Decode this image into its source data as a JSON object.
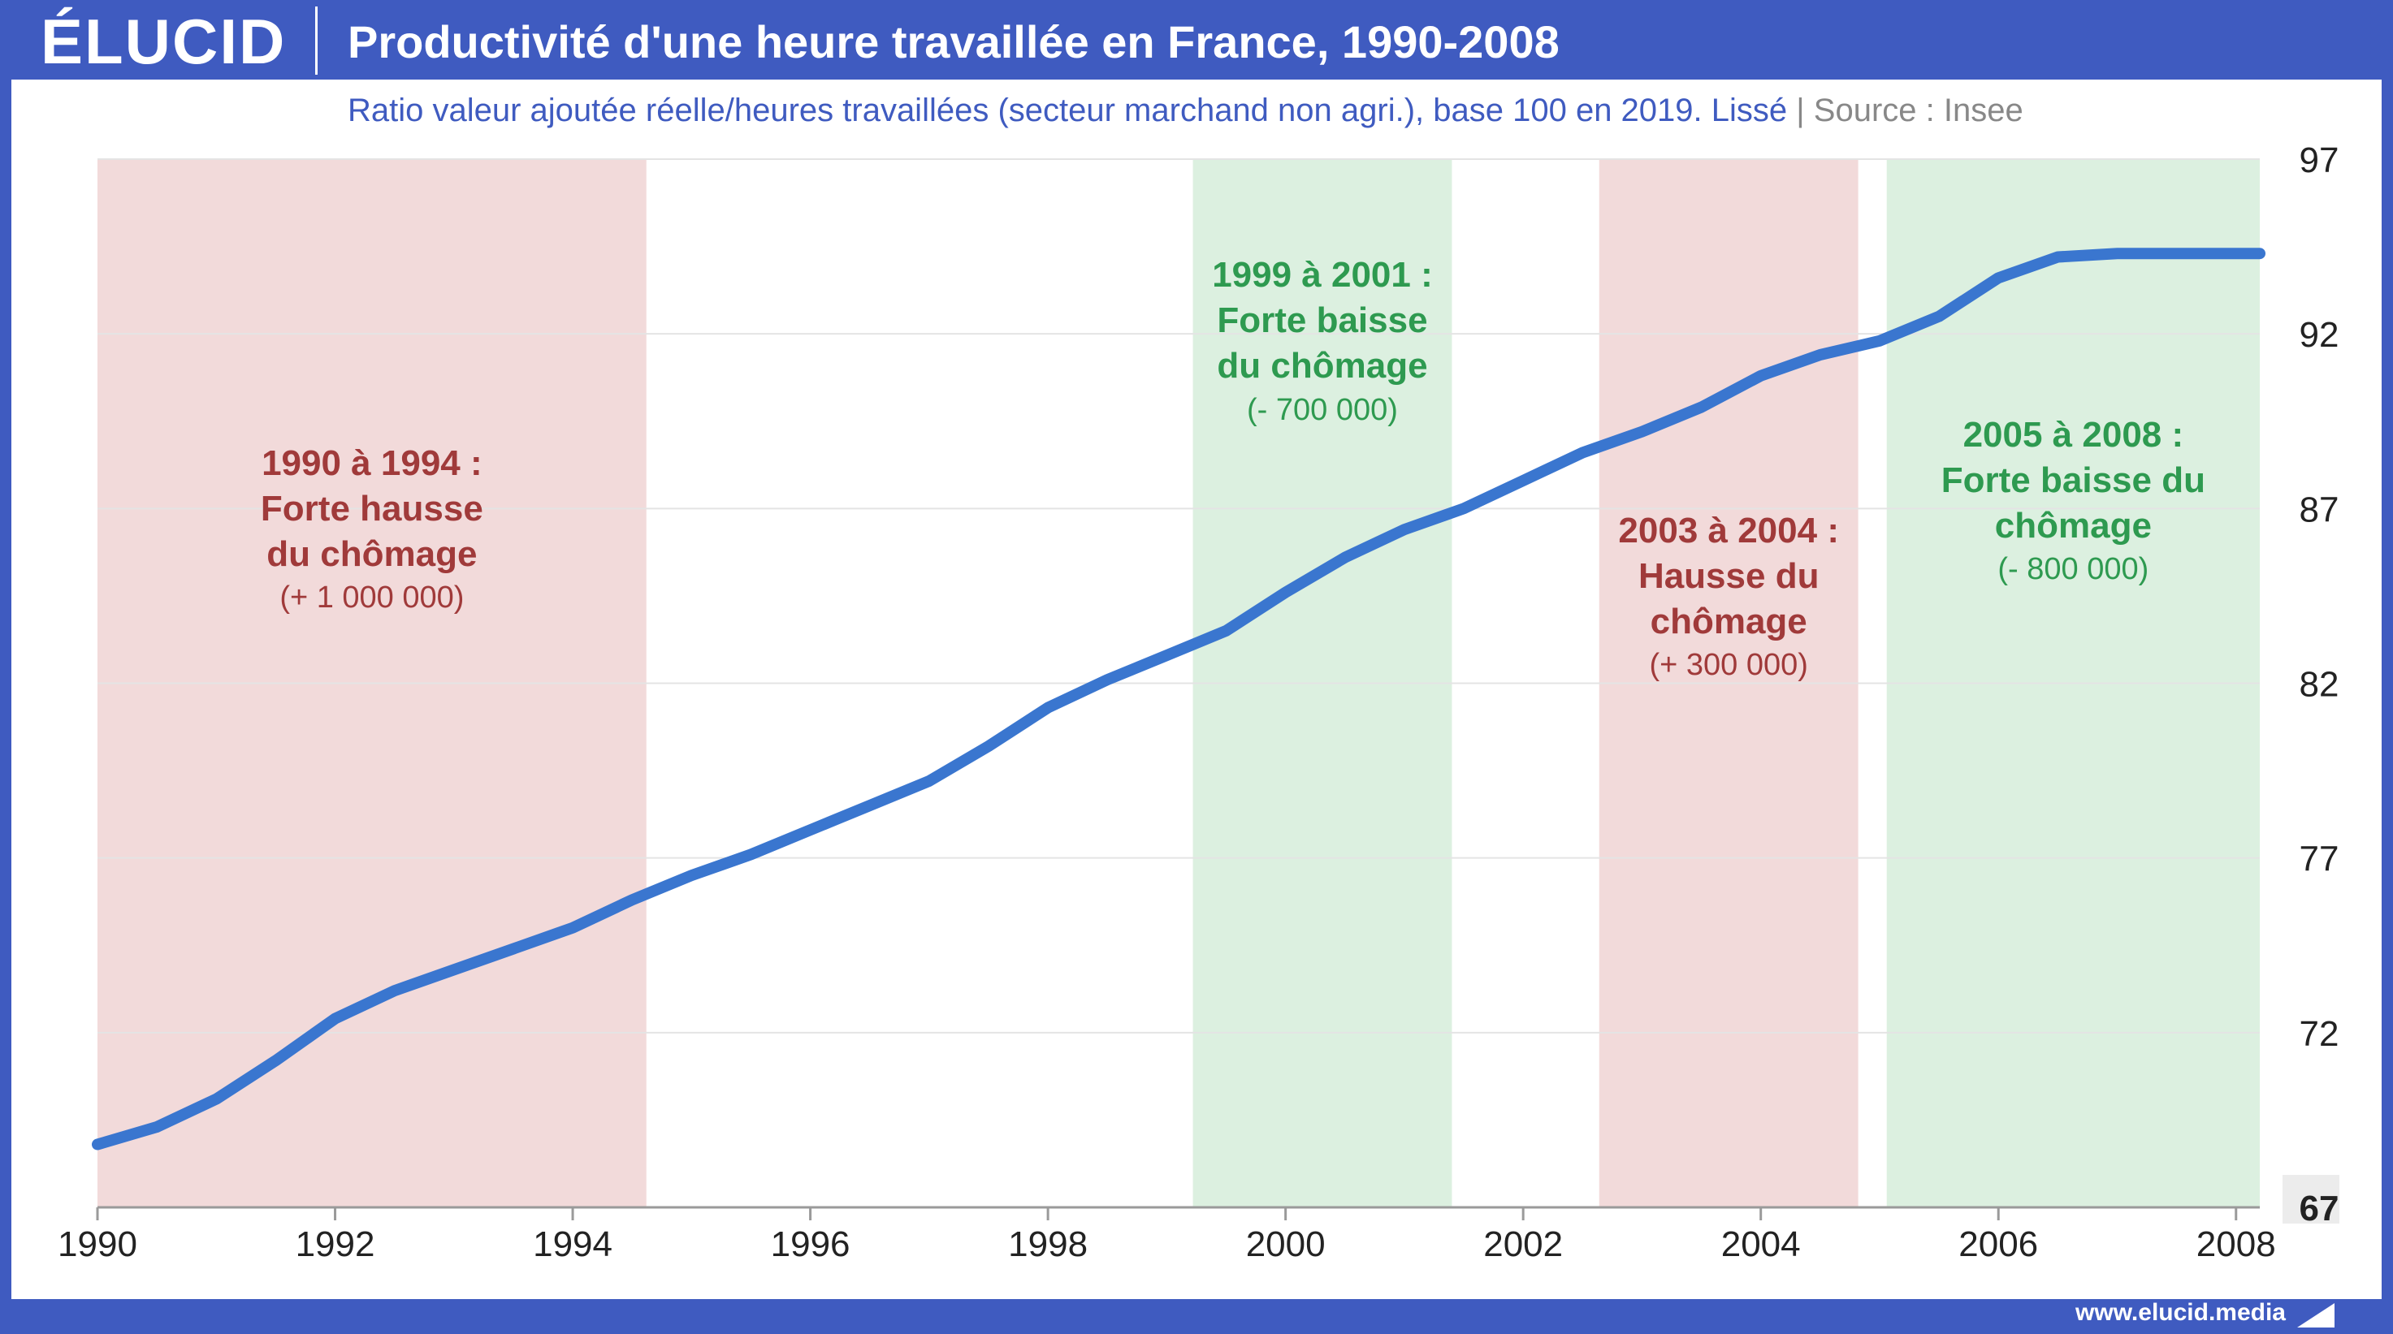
{
  "brand": {
    "logo": "ÉLUCID",
    "url": "www.elucid.media"
  },
  "header": {
    "title": "Productivité d'une heure travaillée en France, 1990-2008"
  },
  "subtitle": {
    "text": "Ratio valeur ajoutée réelle/heures travaillées (secteur marchand non agri.), base 100 en 2019. Lissé",
    "separator": "|",
    "source": "Source : Insee"
  },
  "colors": {
    "frame": "#3f5bc0",
    "line": "#3a76cf",
    "rise_band": "#f2dada",
    "fall_band": "#dcf0e0",
    "rise_text": "#a03a3a",
    "fall_text": "#2e9a50"
  },
  "chart_data": {
    "type": "line",
    "xlim": [
      1990,
      2008.2
    ],
    "ylim": [
      67,
      97
    ],
    "x_ticks": [
      "1990",
      "1992",
      "1994",
      "1996",
      "1998",
      "2000",
      "2002",
      "2004",
      "2006",
      "2008"
    ],
    "y_ticks": [
      "97",
      "92",
      "87",
      "82",
      "77",
      "72",
      "67"
    ],
    "grid": true,
    "y_axis_side": "right",
    "series": [
      {
        "x": [
          1990,
          1990.5,
          1991,
          1991.5,
          1992,
          1992.5,
          1993,
          1993.5,
          1994,
          1994.5,
          1995,
          1995.5,
          1996,
          1996.5,
          1997,
          1997.5,
          1998,
          1998.5,
          1999,
          1999.5,
          2000,
          2000.5,
          2001,
          2001.5,
          2002,
          2002.5,
          2003,
          2003.5,
          2004,
          2004.5,
          2005,
          2005.5,
          2006,
          2006.5,
          2007,
          2007.5,
          2008,
          2008.2
        ],
        "y": [
          68.8,
          69.3,
          70.1,
          71.2,
          72.4,
          73.2,
          73.8,
          74.4,
          75.0,
          75.8,
          76.5,
          77.1,
          77.8,
          78.5,
          79.2,
          80.2,
          81.3,
          82.1,
          82.8,
          83.5,
          84.6,
          85.6,
          86.4,
          87.0,
          87.8,
          88.6,
          89.2,
          89.9,
          90.8,
          91.4,
          91.8,
          92.5,
          93.6,
          94.2,
          94.3,
          94.3,
          94.3,
          94.3
        ]
      }
    ],
    "bands": [
      {
        "kind": "rise",
        "from": 1990,
        "to": 1994.62,
        "label_year": "1990 à 1994 :",
        "label_l1": "Forte hausse",
        "label_l2": "du chômage",
        "label_delta": "(+ 1 000 000)"
      },
      {
        "kind": "fall",
        "from": 1999.22,
        "to": 2001.4,
        "label_year": "1999 à 2001 :",
        "label_l1": "Forte baisse",
        "label_l2": "du chômage",
        "label_delta": "(- 700 000)"
      },
      {
        "kind": "rise",
        "from": 2002.64,
        "to": 2004.82,
        "label_year": "2003 à 2004 :",
        "label_l1": "Hausse du",
        "label_l2": "chômage",
        "label_delta": "(+ 300 000)"
      },
      {
        "kind": "fall",
        "from": 2005.06,
        "to": 2008.25,
        "label_year": "2005 à 2008 :",
        "label_l1": "Forte baisse du",
        "label_l2": "chômage",
        "label_delta": "(- 800 000)"
      }
    ]
  }
}
